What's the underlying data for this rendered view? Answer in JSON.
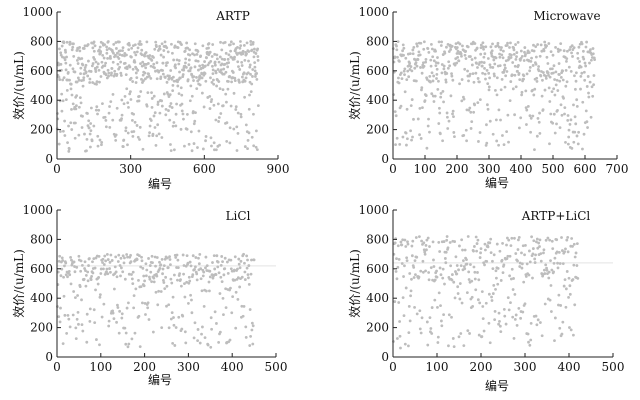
{
  "chart_data": [
    {
      "type": "scatter",
      "title": "ARTP",
      "xlabel": "编号",
      "ylabel": "效价/(u/mL)",
      "xlim": [
        0,
        900
      ],
      "ylim": [
        0,
        1000
      ],
      "xticks": [
        0,
        300,
        600,
        900
      ],
      "yticks": [
        0,
        200,
        400,
        600,
        800,
        1000
      ],
      "grid": false,
      "n_points": 820,
      "y_range_points": [
        50,
        800
      ],
      "point_color": "#bdbdbd",
      "reference_line": null
    },
    {
      "type": "scatter",
      "title": "Microwave",
      "xlabel": "编号",
      "ylabel": "效价/(u/mL)",
      "xlim": [
        0,
        700
      ],
      "ylim": [
        0,
        1000
      ],
      "xticks": [
        0,
        100,
        200,
        300,
        400,
        500,
        600,
        700
      ],
      "yticks": [
        0,
        200,
        400,
        600,
        800,
        1000
      ],
      "grid": false,
      "n_points": 630,
      "y_range_points": [
        60,
        800
      ],
      "point_color": "#bdbdbd",
      "reference_line": null
    },
    {
      "type": "scatter",
      "title": "LiCl",
      "xlabel": "编号",
      "ylabel": "效价/(u/mL)",
      "xlim": [
        0,
        500
      ],
      "ylim": [
        0,
        1000
      ],
      "xticks": [
        0,
        100,
        200,
        300,
        400,
        500
      ],
      "yticks": [
        0,
        200,
        400,
        600,
        800,
        1000
      ],
      "grid": false,
      "n_points": 450,
      "y_range_points": [
        60,
        700
      ],
      "point_color": "#bdbdbd",
      "reference_line": 620
    },
    {
      "type": "scatter",
      "title": "ARTP+LiCl",
      "xlabel": "编号",
      "ylabel": "效价/(u/mL)",
      "xlim": [
        0,
        500
      ],
      "ylim": [
        0,
        1000
      ],
      "xticks": [
        0,
        100,
        200,
        300,
        400,
        500
      ],
      "yticks": [
        0,
        200,
        400,
        600,
        800,
        1000
      ],
      "grid": false,
      "n_points": 420,
      "y_range_points": [
        60,
        820
      ],
      "point_color": "#bdbdbd",
      "reference_line": 640
    }
  ]
}
